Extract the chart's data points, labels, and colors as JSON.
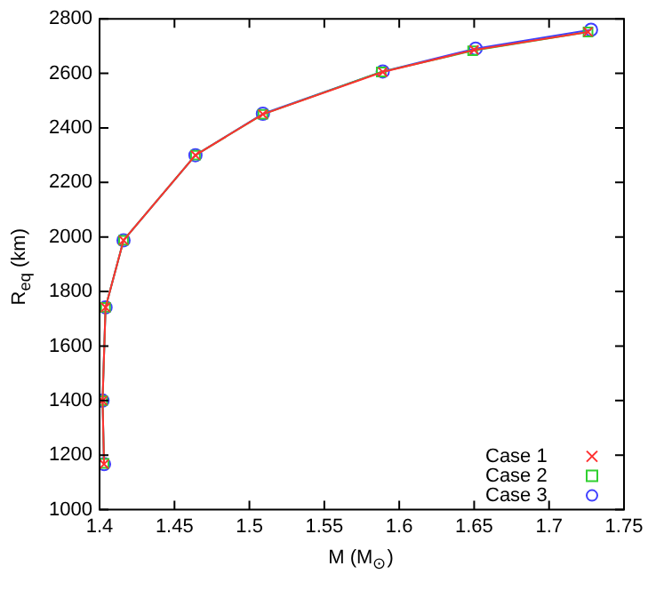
{
  "chart_data": {
    "type": "line",
    "xlabel": "M (M$_{⊙}$)",
    "ylabel": "R$_{eq}$ (km)",
    "xlim": [
      1.4,
      1.75
    ],
    "xticks": [
      1.4,
      1.45,
      1.5,
      1.55,
      1.6,
      1.65,
      1.7,
      1.75
    ],
    "ylim": [
      1000,
      2800
    ],
    "yticks": [
      1000,
      1200,
      1400,
      1600,
      1800,
      2000,
      2200,
      2400,
      2600,
      2800
    ],
    "grid": false,
    "legend": "bottom right",
    "line_style": "solid",
    "series": [
      {
        "name": "Case 1",
        "color": "#ff3030",
        "marker": "cross",
        "x": [
          1.403,
          1.402,
          1.404,
          1.416,
          1.464,
          1.509,
          1.589,
          1.65,
          1.726
        ],
        "values": [
          1167,
          1400,
          1742,
          1988,
          2300,
          2450,
          2605,
          2686,
          2752
        ]
      },
      {
        "name": "Case 2",
        "color": "#30d030",
        "marker": "square",
        "x": [
          1.403,
          1.402,
          1.404,
          1.416,
          1.464,
          1.509,
          1.588,
          1.649,
          1.726
        ],
        "values": [
          1170,
          1400,
          1742,
          1988,
          2300,
          2450,
          2605,
          2683,
          2752
        ]
      },
      {
        "name": "Case 3",
        "color": "#4040ff",
        "marker": "circle",
        "x": [
          1.403,
          1.402,
          1.404,
          1.416,
          1.464,
          1.509,
          1.589,
          1.651,
          1.728
        ],
        "values": [
          1167,
          1400,
          1742,
          1988,
          2300,
          2452,
          2607,
          2691,
          2760
        ]
      }
    ]
  }
}
